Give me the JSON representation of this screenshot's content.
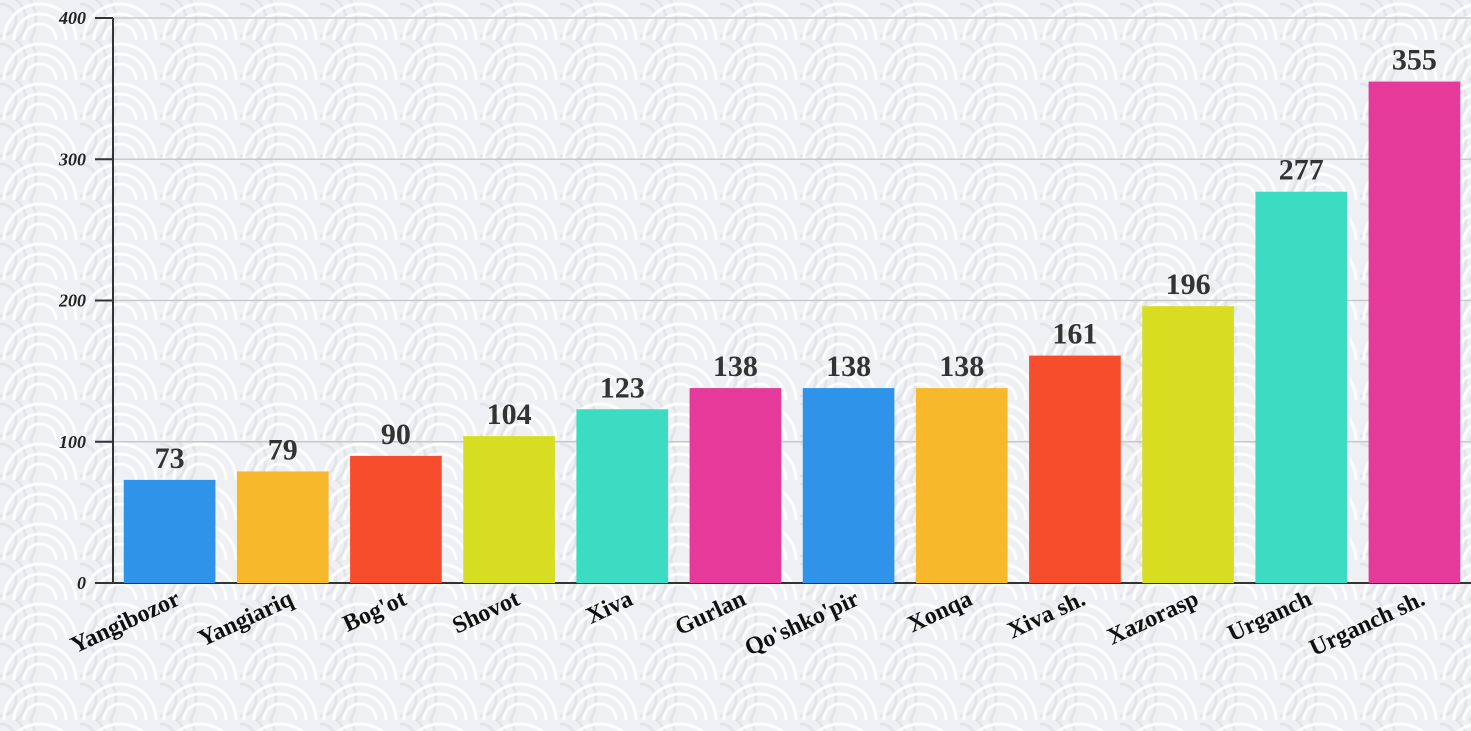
{
  "chart_data": {
    "type": "bar",
    "categories": [
      "Yangibozor",
      "Yangiariq",
      "Bog'ot",
      "Shovot",
      "Xiva",
      "Gurlan",
      "Qo'shko'pir",
      "Xonqa",
      "Xiva sh.",
      "Xazorasp",
      "Urganch",
      "Urganch sh."
    ],
    "values": [
      73,
      79,
      90,
      104,
      123,
      138,
      138,
      138,
      161,
      196,
      277,
      355
    ],
    "value_labels": [
      "73",
      "79",
      "90",
      "104",
      "123",
      "138",
      "138",
      "138",
      "161",
      "196",
      "277",
      "355"
    ],
    "colors": [
      "#2f93ea",
      "#f7b82c",
      "#f64d2c",
      "#d7de22",
      "#3cdcc2",
      "#e53a9a",
      "#2f93ea",
      "#f7b82c",
      "#f64d2c",
      "#d7de22",
      "#3cdcc2",
      "#e53a9a"
    ],
    "ylim": [
      0,
      400
    ],
    "y_ticks": [
      "0",
      "100",
      "200",
      "300",
      "400"
    ],
    "y_tick_values": [
      0,
      100,
      200,
      300,
      400
    ],
    "grid": true,
    "xlabel": "",
    "ylabel": ""
  }
}
